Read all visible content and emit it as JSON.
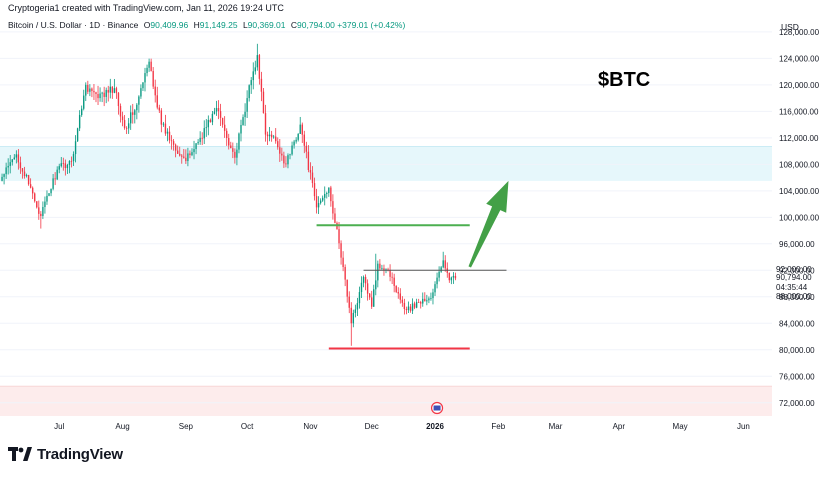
{
  "header": {
    "attribution": "Cryptogeria1 created with TradingView.com, Jan 11, 2026 19:24 UTC",
    "symbol": "Bitcoin / U.S. Dollar · 1D · Binance",
    "ohlc": [
      {
        "label": "O",
        "value": "90,409.96"
      },
      {
        "label": "H",
        "value": "91,149.25"
      },
      {
        "label": "L",
        "value": "90,369.01"
      },
      {
        "label": "C",
        "value": "90,794.00"
      }
    ],
    "change": "+379.01 (+0.42%)"
  },
  "annotation": {
    "ticker": "$BTC"
  },
  "footer": {
    "brand": "TradingView"
  },
  "colors": {
    "up": "#089981",
    "down": "#f23645",
    "support_line": "#f23645",
    "resistance_line": "#4caf50",
    "pivot_line": "#555555",
    "arrow": "#43a047",
    "supply_zone": "#e6f7fb",
    "demand_zone": "#fdecec",
    "grid": "#f0f3fa"
  },
  "chart_data": {
    "type": "candlestick",
    "currency_label": "USD",
    "y_ticks": [
      128000,
      124000,
      120000,
      116000,
      112000,
      108000,
      104000,
      100000,
      96000,
      92000,
      88000,
      84000,
      80000,
      76000,
      72000
    ],
    "y_tick_labels": [
      "128,000.00",
      "124,000.00",
      "120,000.00",
      "116,000.00",
      "112,000.00",
      "108,000.00",
      "104,000.00",
      "100,000.00",
      "96,000.00",
      "92,000.00",
      "88,000.00",
      "84,000.00",
      "80,000.00",
      "76,000.00",
      "72,000.00"
    ],
    "ylim": [
      70000,
      130700
    ],
    "x_ticks": [
      {
        "label": "Jul",
        "date": "2025-07-01"
      },
      {
        "label": "Aug",
        "date": "2025-08-01"
      },
      {
        "label": "Sep",
        "date": "2025-09-01"
      },
      {
        "label": "Oct",
        "date": "2025-10-01"
      },
      {
        "label": "Nov",
        "date": "2025-11-01"
      },
      {
        "label": "Dec",
        "date": "2025-12-01"
      },
      {
        "label": "2026",
        "date": "2026-01-01",
        "bold": true
      },
      {
        "label": "Feb",
        "date": "2026-02-01"
      },
      {
        "label": "Mar",
        "date": "2026-03-01"
      },
      {
        "label": "Apr",
        "date": "2026-04-01"
      },
      {
        "label": "May",
        "date": "2026-05-01"
      },
      {
        "label": "Jun",
        "date": "2026-06-01"
      }
    ],
    "x_range": [
      "2025-06-02",
      "2026-06-15"
    ],
    "last_date": "2026-01-11",
    "anchors": [
      {
        "date": "2025-06-02",
        "close": 105500
      },
      {
        "date": "2025-06-10",
        "close": 109500
      },
      {
        "date": "2025-06-16",
        "close": 105000
      },
      {
        "date": "2025-06-22",
        "close": 100200
      },
      {
        "date": "2025-06-30",
        "close": 107200
      },
      {
        "date": "2025-07-07",
        "close": 108500
      },
      {
        "date": "2025-07-14",
        "close": 120000
      },
      {
        "date": "2025-07-20",
        "close": 118000
      },
      {
        "date": "2025-07-28",
        "close": 119500
      },
      {
        "date": "2025-08-02",
        "close": 113500
      },
      {
        "date": "2025-08-08",
        "close": 117000
      },
      {
        "date": "2025-08-14",
        "close": 123500
      },
      {
        "date": "2025-08-20",
        "close": 114000
      },
      {
        "date": "2025-08-25",
        "close": 111500
      },
      {
        "date": "2025-09-01",
        "close": 108500
      },
      {
        "date": "2025-09-08",
        "close": 112000
      },
      {
        "date": "2025-09-16",
        "close": 116500
      },
      {
        "date": "2025-09-25",
        "close": 109000
      },
      {
        "date": "2025-10-01",
        "close": 118000
      },
      {
        "date": "2025-10-06",
        "close": 124500
      },
      {
        "date": "2025-10-10",
        "close": 112500
      },
      {
        "date": "2025-10-15",
        "close": 111500
      },
      {
        "date": "2025-10-20",
        "close": 108000
      },
      {
        "date": "2025-10-27",
        "close": 114000
      },
      {
        "date": "2025-11-04",
        "close": 101500
      },
      {
        "date": "2025-11-10",
        "close": 104500
      },
      {
        "date": "2025-11-17",
        "close": 92500
      },
      {
        "date": "2025-11-21",
        "close": 84000
      },
      {
        "date": "2025-11-27",
        "close": 91000
      },
      {
        "date": "2025-12-01",
        "close": 86500
      },
      {
        "date": "2025-12-04",
        "close": 93000
      },
      {
        "date": "2025-12-09",
        "close": 92000
      },
      {
        "date": "2025-12-14",
        "close": 88500
      },
      {
        "date": "2025-12-18",
        "close": 86000
      },
      {
        "date": "2025-12-24",
        "close": 87200
      },
      {
        "date": "2025-12-30",
        "close": 87800
      },
      {
        "date": "2026-01-05",
        "close": 93500
      },
      {
        "date": "2026-01-08",
        "close": 90500
      },
      {
        "date": "2026-01-11",
        "close": 90794
      }
    ],
    "wick_highs": [
      {
        "date": "2025-10-06",
        "high": 126200
      },
      {
        "date": "2025-12-03",
        "high": 94500
      },
      {
        "date": "2026-01-05",
        "high": 94800
      }
    ],
    "wick_lows": [
      {
        "date": "2025-06-22",
        "low": 98300
      },
      {
        "date": "2025-11-21",
        "low": 80600
      }
    ],
    "zones": [
      {
        "name": "supply-zone",
        "from": 105500,
        "to": 110700
      },
      {
        "name": "demand-zone",
        "from": 70000,
        "to": 74500
      }
    ],
    "levels": [
      {
        "name": "resistance-line",
        "price": 98800,
        "start": "2025-11-04",
        "end": "2026-01-18",
        "color": "#4caf50"
      },
      {
        "name": "pivot-line",
        "price": 92000,
        "start": "2025-11-27",
        "end": "2026-02-05",
        "color": "#555555"
      },
      {
        "name": "support-line",
        "price": 80200,
        "start": "2025-11-10",
        "end": "2026-01-18",
        "color": "#f23645"
      }
    ],
    "projection_arrow": {
      "from_date": "2026-01-18",
      "from_price": 92500,
      "to_date": "2026-02-06",
      "to_price": 105500
    },
    "last_price": {
      "value": "90,794.00",
      "countdown": "04:35:44",
      "price": 90794
    },
    "level_tag": {
      "value": "92,000.00",
      "price": 92000
    },
    "next_level_tag": {
      "value": "88,000.00",
      "price": 88000
    }
  }
}
